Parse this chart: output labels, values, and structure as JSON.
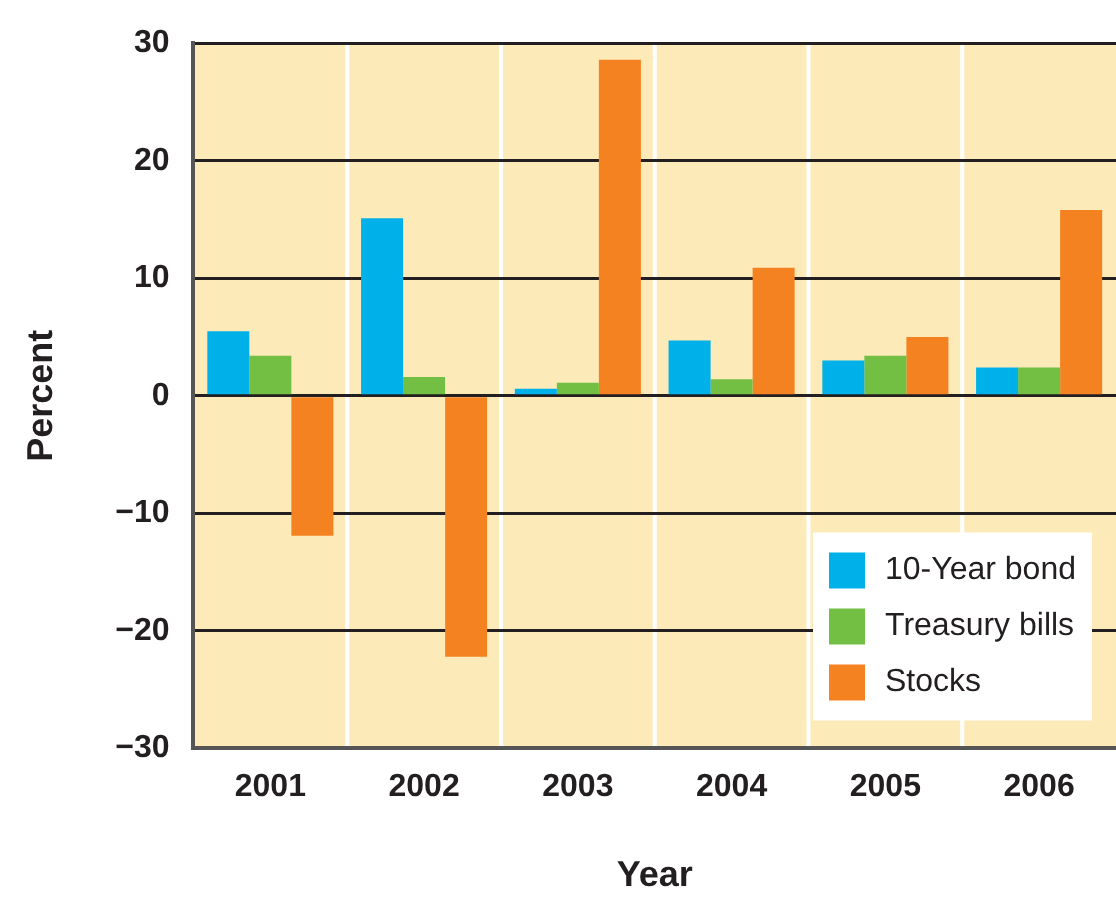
{
  "chart_data": {
    "type": "bar",
    "xlabel": "Year",
    "ylabel": "Percent",
    "categories": [
      "2001",
      "2002",
      "2003",
      "2004",
      "2005",
      "2006"
    ],
    "series": [
      {
        "name": "10-Year bond",
        "color": "#00b0e8",
        "values": [
          5.5,
          15.1,
          0.6,
          4.7,
          3.0,
          2.4
        ]
      },
      {
        "name": "Treasury bills",
        "color": "#72bf44",
        "values": [
          3.4,
          1.6,
          1.1,
          1.4,
          3.4,
          2.4
        ]
      },
      {
        "name": "Stocks",
        "color": "#f58220",
        "values": [
          -11.9,
          -22.2,
          28.6,
          10.9,
          5.0,
          15.8
        ]
      }
    ],
    "ylim": [
      -30,
      30
    ],
    "yticks": [
      {
        "value": -30,
        "label": "−30"
      },
      {
        "value": -20,
        "label": "−20"
      },
      {
        "value": -10,
        "label": "−10"
      },
      0,
      10,
      20,
      30
    ],
    "grid": "y",
    "legend": "bottom right"
  }
}
